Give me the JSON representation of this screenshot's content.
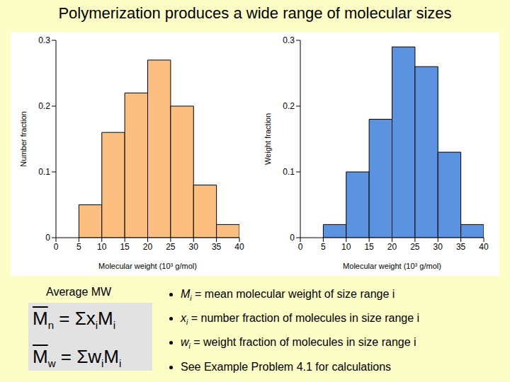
{
  "title": "Polymerization produces a wide range of molecular sizes",
  "chart_data": [
    {
      "type": "histogram",
      "bins": [
        5,
        10,
        15,
        20,
        25,
        30,
        35,
        40
      ],
      "counts": [
        0.05,
        0.16,
        0.22,
        0.27,
        0.2,
        0.08,
        0.02
      ],
      "color": "#fcbf7f",
      "xlim": [
        0,
        40
      ],
      "xticks": [
        0,
        5,
        10,
        15,
        20,
        25,
        30,
        35,
        40
      ],
      "ylim": [
        0,
        0.3
      ],
      "yticks": [
        0,
        0.1,
        0.2,
        0.3
      ],
      "x_label": "Molecular weight (10³ g/mol)",
      "y_label": "Number fraction"
    },
    {
      "type": "histogram",
      "bins": [
        5,
        10,
        15,
        20,
        25,
        30,
        35,
        40
      ],
      "counts": [
        0.02,
        0.1,
        0.18,
        0.29,
        0.26,
        0.13,
        0.02
      ],
      "color": "#5b93e0",
      "xlim": [
        0,
        40
      ],
      "xticks": [
        0,
        5,
        10,
        15,
        20,
        25,
        30,
        35,
        40
      ],
      "ylim": [
        0,
        0.3
      ],
      "yticks": [
        0,
        0.1,
        0.2,
        0.3
      ],
      "x_label": "Molecular weight (10³ g/mol)",
      "y_label": "Weight fraction"
    }
  ],
  "formula_heading": "Average MW",
  "formulas": [
    {
      "symbol": "M",
      "symbol_sub": "n",
      "operator": "= Σ",
      "terms": [
        {
          "symbol": "x",
          "sub": "i"
        },
        {
          "symbol": "M",
          "sub": "i"
        }
      ]
    },
    {
      "symbol": "M",
      "symbol_sub": "w",
      "operator": "= Σ",
      "terms": [
        {
          "symbol": "w",
          "sub": "i"
        },
        {
          "symbol": "M",
          "sub": "i"
        }
      ]
    }
  ],
  "bullets": [
    {
      "symbol": "M",
      "sub": "i",
      "text": "= mean molecular weight of size range i"
    },
    {
      "symbol": "x",
      "sub": "i",
      "text": "= number fraction of molecules in size range i"
    },
    {
      "symbol": "w",
      "sub": "i",
      "text": "= weight fraction of molecules in size range i"
    },
    {
      "text": "See Example Problem 4.1 for calculations"
    }
  ]
}
